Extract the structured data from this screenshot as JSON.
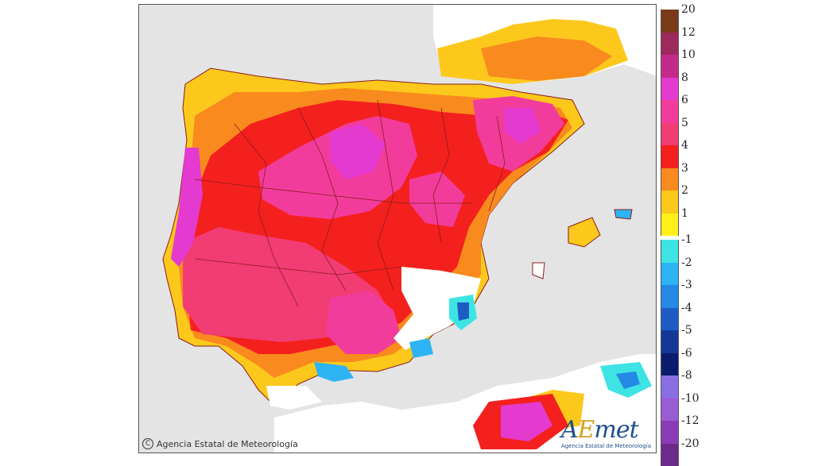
{
  "map": {
    "credit": "Agencia Estatal de Meteorología",
    "copyright_symbol": "C",
    "logo": {
      "prefix": "A",
      "e": "E",
      "rest": "met",
      "subtitle": "Agencia Estatal de Meteorología"
    },
    "colors": {
      "sea": "#e4e4e4",
      "land_zero": "#ffffff",
      "border": "#8a1c1c"
    }
  },
  "legend": {
    "positive": [
      {
        "label": "20",
        "color": "#7a3a1a"
      },
      {
        "label": "12",
        "color": "#9c2a5c"
      },
      {
        "label": "10",
        "color": "#c42a8a"
      },
      {
        "label": "8",
        "color": "#e43ad0"
      },
      {
        "label": "6",
        "color": "#f23c9c"
      },
      {
        "label": "5",
        "color": "#f23c74"
      },
      {
        "label": "4",
        "color": "#f4201e"
      },
      {
        "label": "3",
        "color": "#f88a1e"
      },
      {
        "label": "2",
        "color": "#fcc81c"
      },
      {
        "label": "1",
        "color": "#fff01c"
      }
    ],
    "negative": [
      {
        "label": "-1",
        "color": "#3ee4e4"
      },
      {
        "label": "-2",
        "color": "#2cb4f4"
      },
      {
        "label": "-3",
        "color": "#2488e4"
      },
      {
        "label": "-4",
        "color": "#1c5cc4"
      },
      {
        "label": "-5",
        "color": "#143898"
      },
      {
        "label": "-6",
        "color": "#0c1c6c"
      },
      {
        "label": "-8",
        "color": "#8a6ee4"
      },
      {
        "label": "-10",
        "color": "#9a5cd4"
      },
      {
        "label": "-12",
        "color": "#8a3cb4"
      },
      {
        "label": "-20",
        "color": "#6c2a8a"
      }
    ]
  }
}
